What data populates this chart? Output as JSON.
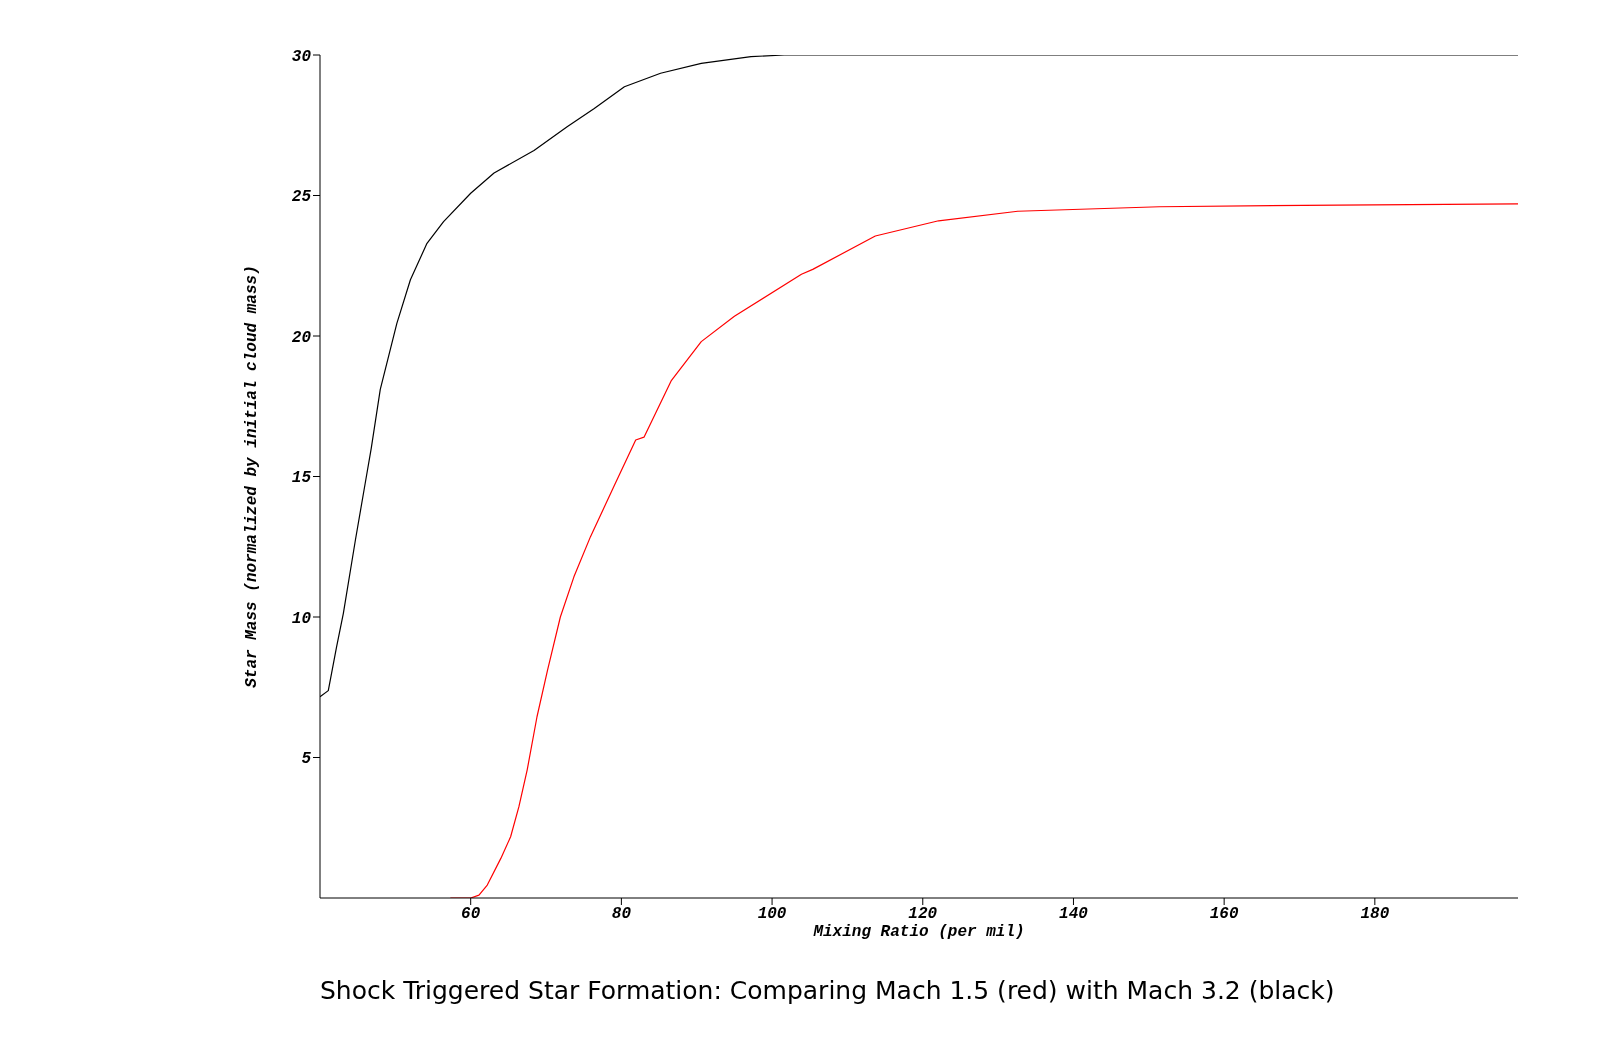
{
  "chart_data": {
    "type": "line",
    "title": "Shock Triggered Star Formation: Comparing Mach 1.5 (red) with Mach 3.2 (black)",
    "xlabel": "Mixing Ratio (per mil)",
    "ylabel": "Star Mass (normalized by initial cloud mass)",
    "xlim": [
      40,
      199
    ],
    "ylim": [
      0,
      30
    ],
    "xticks": [
      60,
      80,
      100,
      120,
      140,
      160,
      180
    ],
    "yticks": [
      5,
      10,
      15,
      20,
      25,
      30
    ],
    "grid": false,
    "legend": false,
    "marker": "none",
    "line_style": "solid",
    "series": [
      {
        "color": "#ff0000",
        "x": [
          57.3,
          60,
          61.1,
          62.2,
          64.0,
          65.3,
          66.4,
          67.5,
          68.8,
          70.2,
          71.9,
          73.7,
          75.9,
          79.0,
          81.9,
          83.0,
          86.6,
          90.6,
          95.0,
          103.9,
          105.4,
          113.7,
          122.1,
          132.6,
          151.4,
          175.1,
          199
        ],
        "values": [
          0,
          0,
          0.1,
          0.46,
          1.41,
          2.18,
          3.25,
          4.56,
          6.45,
          8.11,
          10.0,
          11.43,
          12.86,
          14.64,
          16.3,
          16.4,
          18.4,
          19.8,
          20.7,
          22.2,
          22.37,
          23.56,
          24.1,
          24.44,
          24.6,
          24.66,
          24.7
        ]
      },
      {
        "color": "#000000",
        "x": [
          40,
          41.1,
          42.2,
          43.1,
          44.7,
          46.0,
          46.8,
          48.0,
          50.2,
          52.0,
          54.2,
          56.4,
          60.0,
          63.1,
          68.4,
          72.8,
          76.4,
          80.4,
          85.2,
          90.6,
          97.2,
          101.6,
          199
        ],
        "values": [
          7.16,
          7.38,
          8.94,
          10.13,
          12.74,
          14.76,
          16.0,
          18.1,
          20.45,
          22.0,
          23.3,
          24.07,
          25.08,
          25.8,
          26.6,
          27.45,
          28.1,
          28.87,
          29.35,
          29.7,
          29.94,
          30.0,
          30.0
        ]
      }
    ]
  }
}
